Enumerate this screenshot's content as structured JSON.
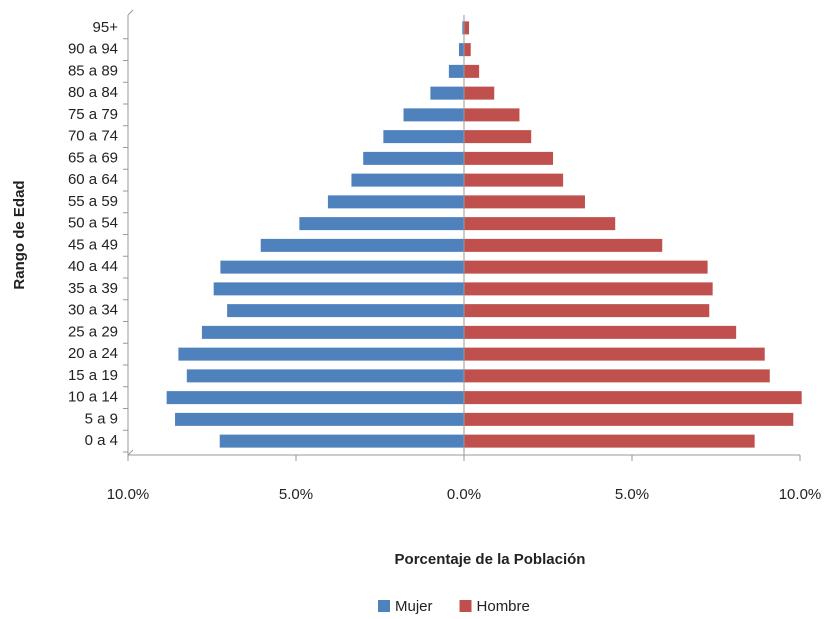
{
  "chart_data": {
    "type": "pyramid",
    "x_label": "Porcentaje de la Población",
    "y_label": "Rango de Edad",
    "categories": [
      "0 a 4",
      "5 a 9",
      "10 a 14",
      "15 a 19",
      "20 a 24",
      "25 a 29",
      "30 a 34",
      "35 a 39",
      "40 a 44",
      "45 a 49",
      "50 a 54",
      "55 a 59",
      "60 a 64",
      "65 a 69",
      "70 a 74",
      "75 a 79",
      "80 a 84",
      "85 a 89",
      "90 a 94",
      "95+"
    ],
    "series": [
      {
        "name": "Mujer",
        "color": "#4f81bd",
        "values": [
          -7.27,
          -8.6,
          -8.85,
          -8.25,
          -8.5,
          -7.8,
          -7.05,
          -7.45,
          -7.25,
          -6.05,
          -4.9,
          -4.05,
          -3.35,
          -3.0,
          -2.4,
          -1.8,
          -1.0,
          -0.45,
          -0.15,
          -0.05
        ]
      },
      {
        "name": "Hombre",
        "color": "#c0504d",
        "values": [
          8.65,
          9.8,
          10.05,
          9.1,
          8.95,
          8.1,
          7.3,
          7.4,
          7.25,
          5.9,
          4.5,
          3.6,
          2.95,
          2.65,
          2.0,
          1.65,
          0.9,
          0.45,
          0.2,
          0.15
        ]
      }
    ],
    "xlim": [
      -10,
      10
    ],
    "xticks": [
      {
        "value": -10,
        "label": "10.0%"
      },
      {
        "value": -5,
        "label": "5.0%"
      },
      {
        "value": 0,
        "label": "0.0%"
      },
      {
        "value": 5,
        "label": "5.0%"
      },
      {
        "value": 10,
        "label": "10.0%"
      }
    ],
    "legend": "bottom"
  }
}
